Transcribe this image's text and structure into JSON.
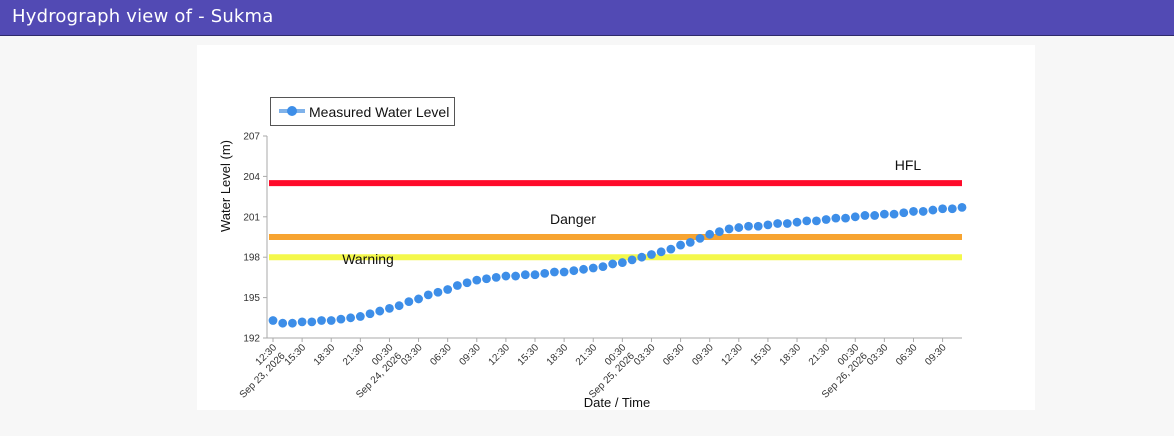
{
  "window": {
    "title": "Hydrograph view of - Sukma"
  },
  "colors": {
    "header_bg": "#524ab4",
    "series": "#3d8ee8",
    "legend_line": "#7fb2ea",
    "hfl": "#ff0a2a",
    "danger": "#f7a431",
    "warning": "#f4f84b"
  },
  "chart_data": {
    "type": "line",
    "title": "",
    "xlabel": "Date / Time",
    "ylabel": "Water Level (m)",
    "ylim": [
      192,
      207
    ],
    "yticks": [
      192,
      195,
      198,
      201,
      204,
      207
    ],
    "x_range": [
      "2026-09-23 12:30",
      "2026-09-26 11:30"
    ],
    "legend": {
      "position": "top-left",
      "entries": [
        "Measured Water Level"
      ]
    },
    "reference_lines": [
      {
        "label": "HFL",
        "value": 203.5,
        "color": "#ff0a2a"
      },
      {
        "label": "Danger",
        "value": 199.5,
        "color": "#f7a431"
      },
      {
        "label": "Warning",
        "value": 198.0,
        "color": "#f4f84b"
      }
    ],
    "xtick_labels": [
      {
        "time": "2026-09-23 12:30",
        "lines": [
          "12:30",
          "Sep 23, 2026"
        ]
      },
      {
        "time": "2026-09-23 15:30",
        "lines": [
          "15:30"
        ]
      },
      {
        "time": "2026-09-23 18:30",
        "lines": [
          "18:30"
        ]
      },
      {
        "time": "2026-09-23 21:30",
        "lines": [
          "21:30"
        ]
      },
      {
        "time": "2026-09-24 00:30",
        "lines": [
          "00:30",
          "Sep 24, 2026"
        ]
      },
      {
        "time": "2026-09-24 03:30",
        "lines": [
          "03:30"
        ]
      },
      {
        "time": "2026-09-24 06:30",
        "lines": [
          "06:30"
        ]
      },
      {
        "time": "2026-09-24 09:30",
        "lines": [
          "09:30"
        ]
      },
      {
        "time": "2026-09-24 12:30",
        "lines": [
          "12:30"
        ]
      },
      {
        "time": "2026-09-24 15:30",
        "lines": [
          "15:30"
        ]
      },
      {
        "time": "2026-09-24 18:30",
        "lines": [
          "18:30"
        ]
      },
      {
        "time": "2026-09-24 21:30",
        "lines": [
          "21:30"
        ]
      },
      {
        "time": "2026-09-25 00:30",
        "lines": [
          "00:30",
          "Sep 25, 2026"
        ]
      },
      {
        "time": "2026-09-25 03:30",
        "lines": [
          "03:30"
        ]
      },
      {
        "time": "2026-09-25 06:30",
        "lines": [
          "06:30"
        ]
      },
      {
        "time": "2026-09-25 09:30",
        "lines": [
          "09:30"
        ]
      },
      {
        "time": "2026-09-25 12:30",
        "lines": [
          "12:30"
        ]
      },
      {
        "time": "2026-09-25 15:30",
        "lines": [
          "15:30"
        ]
      },
      {
        "time": "2026-09-25 18:30",
        "lines": [
          "18:30"
        ]
      },
      {
        "time": "2026-09-25 21:30",
        "lines": [
          "21:30"
        ]
      },
      {
        "time": "2026-09-26 00:30",
        "lines": [
          "00:30",
          "Sep 26, 2026"
        ]
      },
      {
        "time": "2026-09-26 03:30",
        "lines": [
          "03:30"
        ]
      },
      {
        "time": "2026-09-26 06:30",
        "lines": [
          "06:30"
        ]
      },
      {
        "time": "2026-09-26 09:30",
        "lines": [
          "09:30"
        ]
      }
    ],
    "series": [
      {
        "name": "Measured Water Level",
        "x": [
          "2026-09-23 12:30",
          "2026-09-23 13:30",
          "2026-09-23 14:30",
          "2026-09-23 15:30",
          "2026-09-23 16:30",
          "2026-09-23 17:30",
          "2026-09-23 18:30",
          "2026-09-23 19:30",
          "2026-09-23 20:30",
          "2026-09-23 21:30",
          "2026-09-23 22:30",
          "2026-09-23 23:30",
          "2026-09-24 00:30",
          "2026-09-24 01:30",
          "2026-09-24 02:30",
          "2026-09-24 03:30",
          "2026-09-24 04:30",
          "2026-09-24 05:30",
          "2026-09-24 06:30",
          "2026-09-24 07:30",
          "2026-09-24 08:30",
          "2026-09-24 09:30",
          "2026-09-24 10:30",
          "2026-09-24 11:30",
          "2026-09-24 12:30",
          "2026-09-24 13:30",
          "2026-09-24 14:30",
          "2026-09-24 15:30",
          "2026-09-24 16:30",
          "2026-09-24 17:30",
          "2026-09-24 18:30",
          "2026-09-24 19:30",
          "2026-09-24 20:30",
          "2026-09-24 21:30",
          "2026-09-24 22:30",
          "2026-09-24 23:30",
          "2026-09-25 00:30",
          "2026-09-25 01:30",
          "2026-09-25 02:30",
          "2026-09-25 03:30",
          "2026-09-25 04:30",
          "2026-09-25 05:30",
          "2026-09-25 06:30",
          "2026-09-25 07:30",
          "2026-09-25 08:30",
          "2026-09-25 09:30",
          "2026-09-25 10:30",
          "2026-09-25 11:30",
          "2026-09-25 12:30",
          "2026-09-25 13:30",
          "2026-09-25 14:30",
          "2026-09-25 15:30",
          "2026-09-25 16:30",
          "2026-09-25 17:30",
          "2026-09-25 18:30",
          "2026-09-25 19:30",
          "2026-09-25 20:30",
          "2026-09-25 21:30",
          "2026-09-25 22:30",
          "2026-09-25 23:30",
          "2026-09-26 00:30",
          "2026-09-26 01:30",
          "2026-09-26 02:30",
          "2026-09-26 03:30",
          "2026-09-26 04:30",
          "2026-09-26 05:30",
          "2026-09-26 06:30",
          "2026-09-26 07:30",
          "2026-09-26 08:30",
          "2026-09-26 09:30",
          "2026-09-26 10:30",
          "2026-09-26 11:30"
        ],
        "values": [
          193.3,
          193.1,
          193.1,
          193.2,
          193.2,
          193.3,
          193.3,
          193.4,
          193.5,
          193.6,
          193.8,
          194.0,
          194.2,
          194.4,
          194.7,
          194.9,
          195.2,
          195.4,
          195.6,
          195.9,
          196.1,
          196.3,
          196.4,
          196.5,
          196.6,
          196.6,
          196.7,
          196.7,
          196.8,
          196.9,
          196.9,
          197.0,
          197.1,
          197.2,
          197.3,
          197.5,
          197.6,
          197.8,
          198.0,
          198.2,
          198.4,
          198.6,
          198.9,
          199.1,
          199.4,
          199.7,
          199.9,
          200.1,
          200.2,
          200.3,
          200.3,
          200.4,
          200.5,
          200.5,
          200.6,
          200.7,
          200.7,
          200.8,
          200.9,
          200.9,
          201.0,
          201.1,
          201.1,
          201.2,
          201.2,
          201.3,
          201.4,
          201.4,
          201.5,
          201.6,
          201.6,
          201.7
        ]
      }
    ]
  }
}
